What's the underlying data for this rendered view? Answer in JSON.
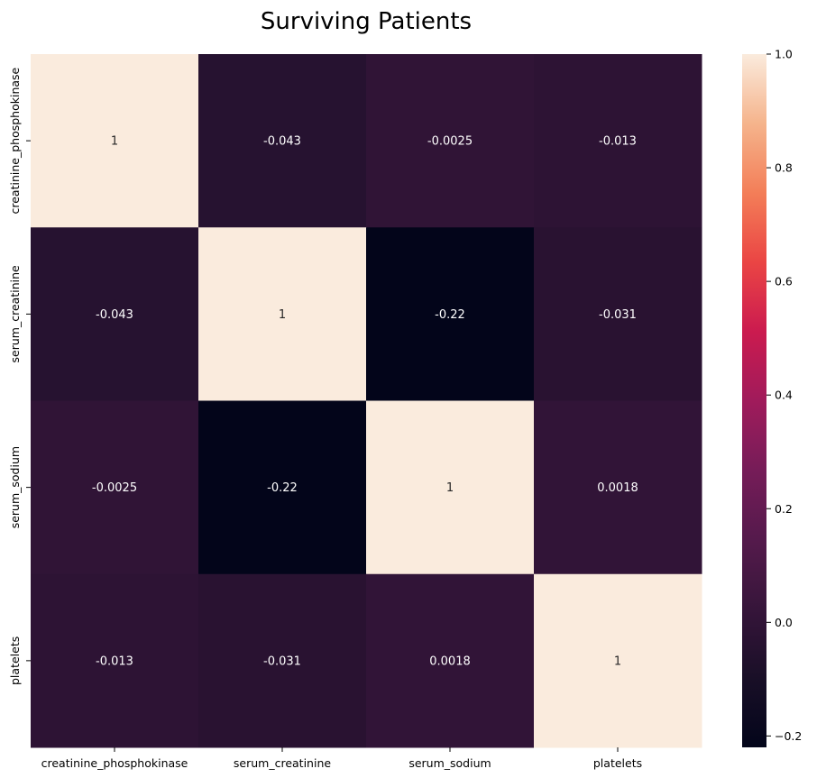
{
  "chart_data": {
    "type": "heatmap",
    "title": "Surviving Patients",
    "x_labels": [
      "creatinine_phosphokinase",
      "serum_creatinine",
      "serum_sodium",
      "platelets"
    ],
    "y_labels": [
      "creatinine_phosphokinase",
      "serum_creatinine",
      "serum_sodium",
      "platelets"
    ],
    "values": [
      [
        1,
        -0.043,
        -0.0025,
        -0.013
      ],
      [
        -0.043,
        1,
        -0.22,
        -0.031
      ],
      [
        -0.0025,
        -0.22,
        1,
        0.0018
      ],
      [
        -0.013,
        -0.031,
        0.0018,
        1
      ]
    ],
    "cell_text": [
      [
        "1",
        "-0.043",
        "-0.0025",
        "-0.013"
      ],
      [
        "-0.043",
        "1",
        "-0.22",
        "-0.031"
      ],
      [
        "-0.0025",
        "-0.22",
        "1",
        "0.0018"
      ],
      [
        "-0.013",
        "-0.031",
        "0.0018",
        "1"
      ]
    ],
    "colorscale": "rocket",
    "vmin": -0.22,
    "vmax": 1,
    "colorbar": {
      "ticks": [
        -0.2,
        0.0,
        0.2,
        0.4,
        0.6,
        0.8,
        1.0
      ],
      "tick_labels": [
        "−0.2",
        "0.0",
        "0.2",
        "0.4",
        "0.6",
        "0.8",
        "1.0"
      ]
    }
  }
}
